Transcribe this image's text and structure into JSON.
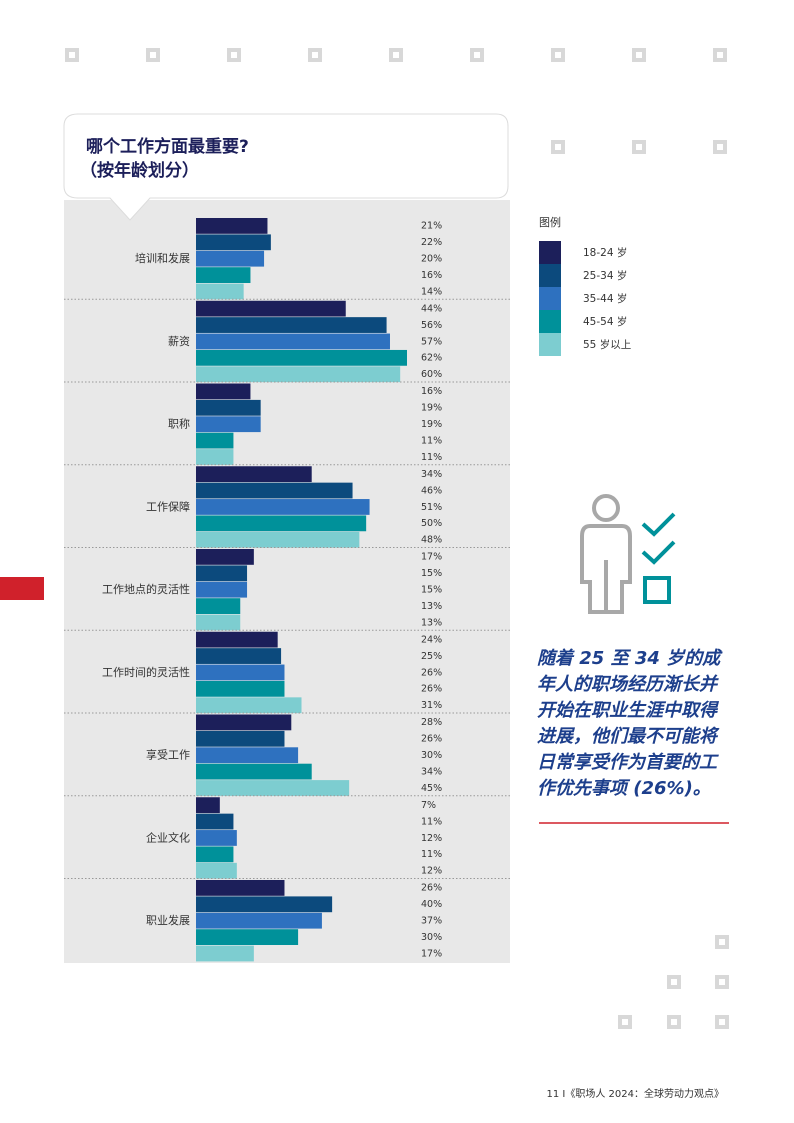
{
  "chart_data": {
    "type": "hbar",
    "title": [
      "哪个工作方面最重要?",
      "（按年龄划分）"
    ],
    "legend_title": "图例",
    "categories": [
      "培训和发展",
      "薪资",
      "职称",
      "工作保障",
      "工作地点的灵活性",
      "工作时间的灵活性",
      "享受工作",
      "企业文化",
      "职业发展"
    ],
    "series": [
      {
        "name": "18-24 岁",
        "color": "#1c1f5a",
        "values": [
          21,
          44,
          16,
          34,
          17,
          24,
          28,
          7,
          26
        ],
        "value_labels": [
          "21%",
          "44%",
          "16%",
          "34%",
          "17%",
          "24%",
          "28%",
          "7%",
          "26%"
        ]
      },
      {
        "name": "25-34 岁",
        "color": "#0c4a7d",
        "values": [
          22,
          56,
          19,
          46,
          15,
          25,
          26,
          11,
          40
        ],
        "value_labels": [
          "22%",
          "56%",
          "19%",
          "46%",
          "15%",
          "25%",
          "26%",
          "11%",
          "40%"
        ]
      },
      {
        "name": "35-44 岁",
        "color": "#2e71bf",
        "values": [
          20,
          57,
          19,
          51,
          15,
          26,
          30,
          12,
          37
        ],
        "value_labels": [
          "20%",
          "57%",
          "19%",
          "51%",
          "15%",
          "26%",
          "30%",
          "12%",
          "37%"
        ]
      },
      {
        "name": "45-54 岁",
        "color": "#00919a",
        "values": [
          16,
          62,
          11,
          50,
          13,
          26,
          34,
          11,
          30
        ],
        "value_labels": [
          "16%",
          "62%",
          "11%",
          "50%",
          "13%",
          "26%",
          "34%",
          "11%",
          "30%"
        ]
      },
      {
        "name": "55 岁以上",
        "color": "#7dcdd0",
        "values": [
          14,
          60,
          11,
          48,
          13,
          31,
          45,
          12,
          17
        ],
        "value_labels": [
          "14%",
          "60%",
          "11%",
          "48%",
          "13%",
          "31%",
          "45%",
          "12%",
          "17%"
        ]
      }
    ]
  },
  "callout": [
    "随着 25 至 34 岁的成",
    "年人的职场经历渐长并",
    "开始在职业生涯中取得",
    "进展，他们最不可能将",
    "日常享受作为首要的工",
    "作优先事项 (26%)。"
  ],
  "footer": "11 I《职场人 2024：全球劳动力观点》"
}
